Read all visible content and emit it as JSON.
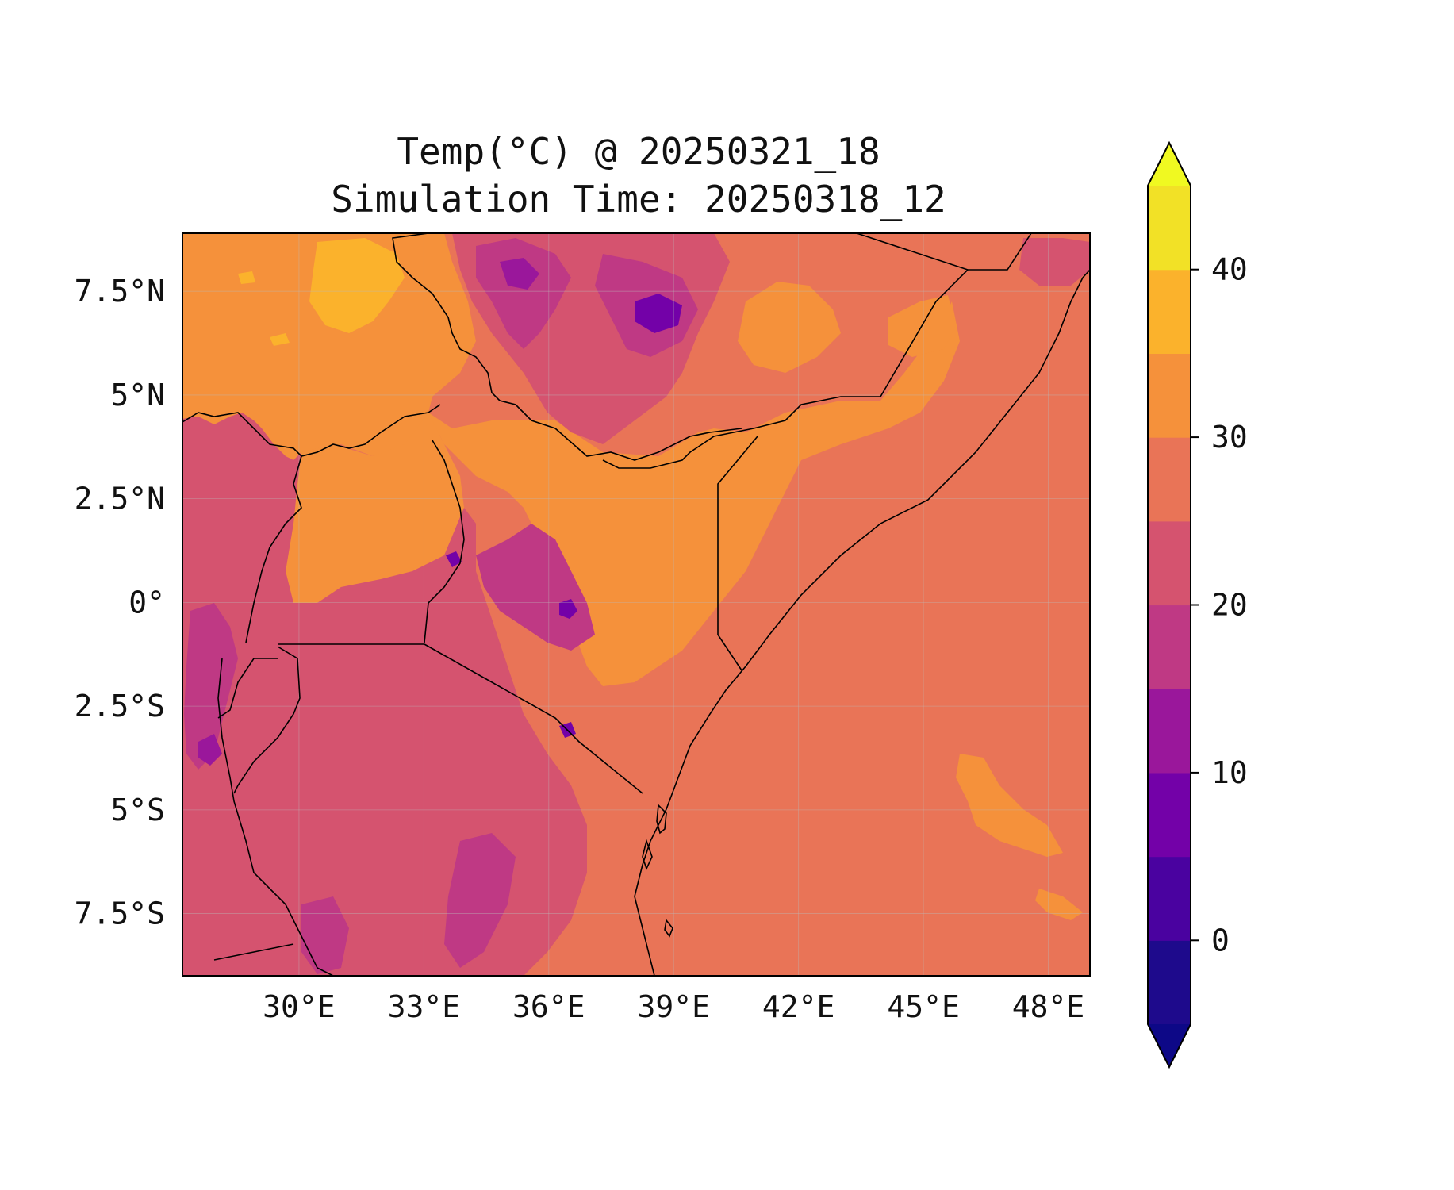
{
  "title": {
    "line1": "Temp(°C) @ 20250321_18",
    "line2": "Simulation Time: 20250318_12"
  },
  "map": {
    "lon_range": [
      27.2,
      49.0
    ],
    "lat_range": [
      -9.0,
      8.9
    ],
    "x_ticks": [
      {
        "value": 30,
        "label": "30°E"
      },
      {
        "value": 33,
        "label": "33°E"
      },
      {
        "value": 36,
        "label": "36°E"
      },
      {
        "value": 39,
        "label": "39°E"
      },
      {
        "value": 42,
        "label": "42°E"
      },
      {
        "value": 45,
        "label": "45°E"
      },
      {
        "value": 48,
        "label": "48°E"
      }
    ],
    "y_ticks": [
      {
        "value": 7.5,
        "label": "7.5°N"
      },
      {
        "value": 5,
        "label": "5°N"
      },
      {
        "value": 2.5,
        "label": "2.5°N"
      },
      {
        "value": 0,
        "label": "0°"
      },
      {
        "value": -2.5,
        "label": "2.5°S"
      },
      {
        "value": -5,
        "label": "5°S"
      },
      {
        "value": -7.5,
        "label": "7.5°S"
      }
    ],
    "background_color": "#e97457",
    "grid": true
  },
  "colorbar": {
    "levels": [
      -5,
      0,
      5,
      10,
      15,
      20,
      25,
      30,
      35,
      40,
      45
    ],
    "extend": "both",
    "colors": [
      "#0d0887",
      "#2c0594",
      "#5302a3",
      "#8b0aa5",
      "#a72197",
      "#cc4778",
      "#e16462",
      "#e97457",
      "#f89540",
      "#fdb32f",
      "#f0f921"
    ],
    "band_colors": [
      "#1e0a8c",
      "#4a02a0",
      "#7301a8",
      "#9a179b",
      "#bf3984",
      "#d5536f",
      "#e97457",
      "#f5913b",
      "#fbb22c",
      "#f2e126"
    ],
    "tick_labels": [
      {
        "value": 0,
        "label": "0"
      },
      {
        "value": 10,
        "label": "10"
      },
      {
        "value": 20,
        "label": "20"
      },
      {
        "value": 30,
        "label": "30"
      },
      {
        "value": 40,
        "label": "40"
      }
    ]
  }
}
